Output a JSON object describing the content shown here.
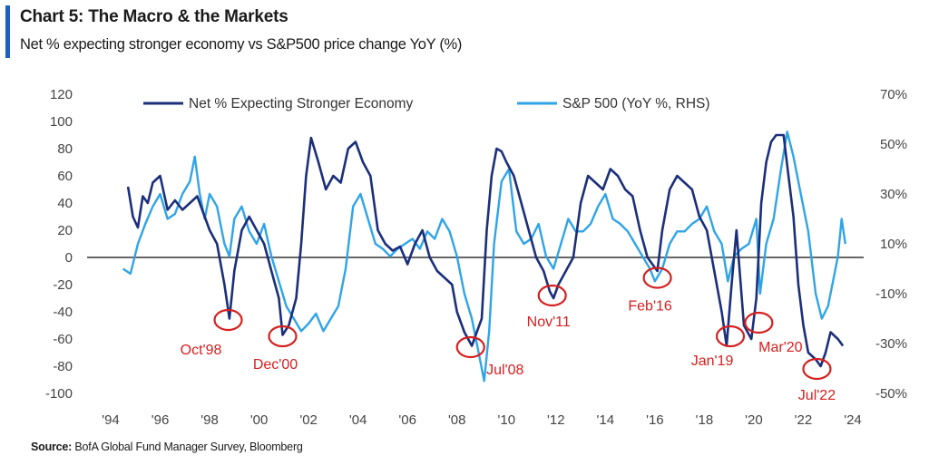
{
  "header": {
    "title": "Chart 5: The Macro & the Markets",
    "subtitle": "Net % expecting stronger economy vs S&P500 price change YoY (%)"
  },
  "footer": {
    "source_label": "Source:",
    "source_text": "BofA Global Fund Manager Survey, Bloomberg"
  },
  "chart_data": {
    "type": "line",
    "legend_position": "top",
    "grid": false,
    "x_ticks": [
      "'94",
      "'96",
      "'98",
      "'00",
      "'02",
      "'04",
      "'06",
      "'08",
      "'10",
      "'12",
      "'14",
      "'16",
      "'18",
      "'20",
      "'22",
      "'24"
    ],
    "x_range": [
      1994,
      2024
    ],
    "y_left": {
      "range": [
        -100,
        120
      ],
      "ticks": [
        "120",
        "100",
        "80",
        "60",
        "40",
        "20",
        "0",
        "-20",
        "-40",
        "-60",
        "-80",
        "-100"
      ]
    },
    "y_right": {
      "range": [
        -50,
        70
      ],
      "ticks": [
        "70%",
        "50%",
        "30%",
        "10%",
        "-10%",
        "-30%",
        "-50%"
      ]
    },
    "colors": {
      "econ": "#1b2f7a",
      "spx": "#2fa4e7",
      "annotation": "#d42020",
      "zero_line": "#333333"
    },
    "series": [
      {
        "name": "Net % Expecting Stronger Economy",
        "axis": "left",
        "x": [
          1994.7,
          1994.9,
          1995.1,
          1995.3,
          1995.5,
          1995.7,
          1996.0,
          1996.3,
          1996.6,
          1996.9,
          1997.2,
          1997.5,
          1997.8,
          1998.0,
          1998.3,
          1998.6,
          1998.8,
          1999.0,
          1999.3,
          1999.6,
          1999.9,
          2000.2,
          2000.5,
          2000.8,
          2000.95,
          2001.2,
          2001.5,
          2001.7,
          2001.9,
          2002.1,
          2002.4,
          2002.7,
          2003.0,
          2003.3,
          2003.6,
          2003.9,
          2004.2,
          2004.5,
          2004.8,
          2005.1,
          2005.4,
          2005.7,
          2006.0,
          2006.3,
          2006.6,
          2006.9,
          2007.2,
          2007.5,
          2007.8,
          2008.0,
          2008.3,
          2008.6,
          2008.8,
          2009.0,
          2009.2,
          2009.4,
          2009.6,
          2009.8,
          2010.0,
          2010.3,
          2010.6,
          2010.9,
          2011.2,
          2011.5,
          2011.75,
          2011.9,
          2012.1,
          2012.4,
          2012.7,
          2013.0,
          2013.3,
          2013.6,
          2013.9,
          2014.2,
          2014.5,
          2014.8,
          2015.1,
          2015.4,
          2015.7,
          2015.9,
          2016.1,
          2016.3,
          2016.6,
          2016.9,
          2017.2,
          2017.5,
          2017.8,
          2018.1,
          2018.4,
          2018.7,
          2018.9,
          2019.1,
          2019.3,
          2019.6,
          2019.9,
          2020.1,
          2020.3,
          2020.5,
          2020.7,
          2020.9,
          2021.2,
          2021.4,
          2021.6,
          2021.8,
          2022.0,
          2022.2,
          2022.5,
          2022.7,
          2022.9,
          2023.1,
          2023.4,
          2023.6
        ],
        "values": [
          52,
          30,
          22,
          45,
          40,
          55,
          60,
          35,
          42,
          35,
          40,
          45,
          30,
          20,
          10,
          -20,
          -45,
          -10,
          20,
          30,
          20,
          10,
          -10,
          -30,
          -57,
          -50,
          -30,
          10,
          60,
          88,
          70,
          50,
          60,
          55,
          80,
          85,
          70,
          60,
          20,
          10,
          5,
          8,
          -5,
          10,
          20,
          0,
          -10,
          -15,
          -20,
          -40,
          -55,
          -65,
          -55,
          -45,
          20,
          60,
          80,
          78,
          70,
          60,
          40,
          20,
          0,
          -10,
          -25,
          -30,
          -20,
          -10,
          0,
          40,
          60,
          55,
          50,
          65,
          60,
          50,
          45,
          20,
          0,
          -5,
          -10,
          20,
          50,
          60,
          55,
          50,
          30,
          20,
          -10,
          -40,
          -65,
          -20,
          20,
          -50,
          -60,
          -30,
          40,
          70,
          85,
          90,
          90,
          60,
          30,
          -20,
          -50,
          -70,
          -75,
          -80,
          -70,
          -55,
          -60,
          -65
        ]
      },
      {
        "name": "S&P 500 (YoY %, RHS)",
        "axis": "right",
        "x": [
          1994.5,
          1994.8,
          1995.1,
          1995.4,
          1995.7,
          1996.0,
          1996.3,
          1996.6,
          1996.9,
          1997.2,
          1997.4,
          1997.6,
          1997.8,
          1998.0,
          1998.3,
          1998.6,
          1998.8,
          1999.0,
          1999.3,
          1999.6,
          1999.9,
          2000.2,
          2000.5,
          2000.8,
          2001.1,
          2001.4,
          2001.7,
          2002.0,
          2002.3,
          2002.6,
          2002.9,
          2003.2,
          2003.5,
          2003.8,
          2004.1,
          2004.4,
          2004.7,
          2005.0,
          2005.3,
          2005.6,
          2005.9,
          2006.2,
          2006.5,
          2006.8,
          2007.1,
          2007.4,
          2007.7,
          2008.0,
          2008.3,
          2008.6,
          2008.9,
          2009.1,
          2009.3,
          2009.5,
          2009.8,
          2010.1,
          2010.4,
          2010.7,
          2011.0,
          2011.3,
          2011.6,
          2011.9,
          2012.2,
          2012.5,
          2012.8,
          2013.1,
          2013.4,
          2013.7,
          2014.0,
          2014.3,
          2014.6,
          2014.9,
          2015.2,
          2015.5,
          2015.8,
          2016.0,
          2016.3,
          2016.6,
          2016.9,
          2017.2,
          2017.5,
          2017.8,
          2018.1,
          2018.4,
          2018.7,
          2018.95,
          2019.2,
          2019.5,
          2019.8,
          2020.1,
          2020.25,
          2020.5,
          2020.8,
          2021.1,
          2021.35,
          2021.6,
          2021.9,
          2022.2,
          2022.5,
          2022.75,
          2023.0,
          2023.2,
          2023.4,
          2023.55,
          2023.7
        ],
        "values": [
          0,
          -2,
          10,
          18,
          25,
          30,
          20,
          22,
          30,
          35,
          45,
          30,
          20,
          30,
          25,
          10,
          5,
          20,
          25,
          15,
          10,
          18,
          5,
          -5,
          -15,
          -20,
          -25,
          -22,
          -18,
          -25,
          -20,
          -15,
          0,
          25,
          30,
          20,
          10,
          8,
          5,
          8,
          10,
          12,
          8,
          15,
          12,
          20,
          15,
          5,
          -10,
          -20,
          -35,
          -45,
          -25,
          10,
          35,
          40,
          15,
          10,
          12,
          18,
          5,
          0,
          10,
          20,
          15,
          15,
          18,
          25,
          30,
          20,
          18,
          15,
          10,
          5,
          0,
          -5,
          0,
          10,
          15,
          15,
          18,
          20,
          25,
          15,
          10,
          -5,
          5,
          8,
          10,
          20,
          -10,
          10,
          20,
          40,
          55,
          45,
          30,
          15,
          -10,
          -20,
          -15,
          -5,
          5,
          20,
          10
        ]
      }
    ],
    "annotations": [
      {
        "label": "Oct'98",
        "x": 1998.75,
        "y": -46
      },
      {
        "label": "Dec'00",
        "x": 2000.95,
        "y": -58
      },
      {
        "label": "Jul'08",
        "x": 2008.55,
        "y": -66
      },
      {
        "label": "Nov'11",
        "x": 2011.85,
        "y": -28
      },
      {
        "label": "Feb'16",
        "x": 2016.1,
        "y": -15
      },
      {
        "label": "Jan'19",
        "x": 2019.05,
        "y": -58
      },
      {
        "label": "Mar'20",
        "x": 2020.2,
        "y": -48
      },
      {
        "label": "Jul'22",
        "x": 2022.55,
        "y": -82
      }
    ]
  }
}
